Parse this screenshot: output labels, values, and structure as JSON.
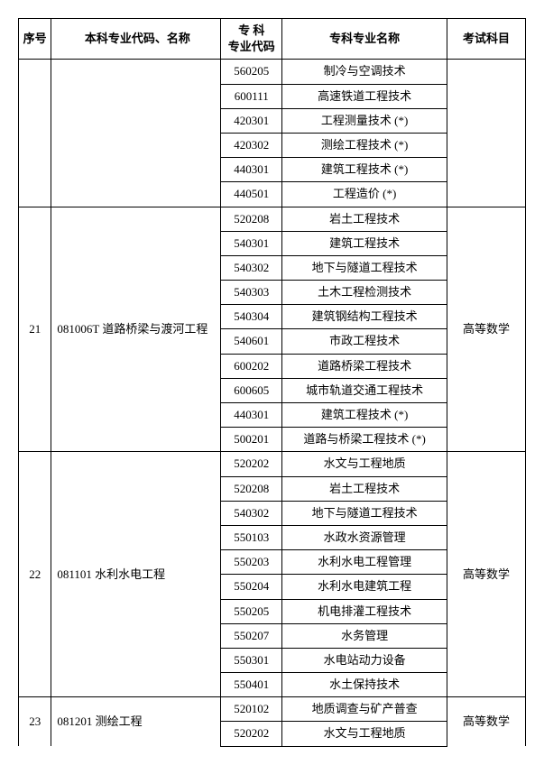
{
  "headers": {
    "seq": "序号",
    "major": "本科专业代码、名称",
    "zkcode": "专 科\n专业代码",
    "zkname": "专科专业名称",
    "exam": "考试科目"
  },
  "groups": [
    {
      "seq": "",
      "major": "",
      "exam": "",
      "continuation": true,
      "rows": [
        {
          "zkcode": "560205",
          "zkname": "制冷与空调技术"
        },
        {
          "zkcode": "600111",
          "zkname": "高速铁道工程技术"
        },
        {
          "zkcode": "420301",
          "zkname": "工程测量技术 (*)"
        },
        {
          "zkcode": "420302",
          "zkname": "测绘工程技术 (*)"
        },
        {
          "zkcode": "440301",
          "zkname": "建筑工程技术 (*)"
        },
        {
          "zkcode": "440501",
          "zkname": "工程造价 (*)"
        }
      ]
    },
    {
      "seq": "21",
      "major": "081006T 道路桥梁与渡河工程",
      "exam": "高等数学",
      "continuation": false,
      "rows": [
        {
          "zkcode": "520208",
          "zkname": "岩土工程技术"
        },
        {
          "zkcode": "540301",
          "zkname": "建筑工程技术"
        },
        {
          "zkcode": "540302",
          "zkname": "地下与隧道工程技术"
        },
        {
          "zkcode": "540303",
          "zkname": "土木工程检测技术"
        },
        {
          "zkcode": "540304",
          "zkname": "建筑钢结构工程技术"
        },
        {
          "zkcode": "540601",
          "zkname": "市政工程技术"
        },
        {
          "zkcode": "600202",
          "zkname": "道路桥梁工程技术"
        },
        {
          "zkcode": "600605",
          "zkname": "城市轨道交通工程技术"
        },
        {
          "zkcode": "440301",
          "zkname": "建筑工程技术 (*)"
        },
        {
          "zkcode": "500201",
          "zkname": "道路与桥梁工程技术 (*)"
        }
      ]
    },
    {
      "seq": "22",
      "major": "081101   水利水电工程",
      "exam": "高等数学",
      "continuation": false,
      "rows": [
        {
          "zkcode": "520202",
          "zkname": "水文与工程地质"
        },
        {
          "zkcode": "520208",
          "zkname": "岩土工程技术"
        },
        {
          "zkcode": "540302",
          "zkname": "地下与隧道工程技术"
        },
        {
          "zkcode": "550103",
          "zkname": "水政水资源管理"
        },
        {
          "zkcode": "550203",
          "zkname": "水利水电工程管理"
        },
        {
          "zkcode": "550204",
          "zkname": "水利水电建筑工程"
        },
        {
          "zkcode": "550205",
          "zkname": "机电排灌工程技术"
        },
        {
          "zkcode": "550207",
          "zkname": "水务管理"
        },
        {
          "zkcode": "550301",
          "zkname": "水电站动力设备"
        },
        {
          "zkcode": "550401",
          "zkname": "水土保持技术"
        }
      ]
    },
    {
      "seq": "23",
      "major": "081201   测绘工程",
      "exam": "高等数学",
      "continuation": false,
      "openBottom": true,
      "rows": [
        {
          "zkcode": "520102",
          "zkname": "地质调查与矿产普查"
        },
        {
          "zkcode": "520202",
          "zkname": "水文与工程地质"
        }
      ]
    }
  ]
}
